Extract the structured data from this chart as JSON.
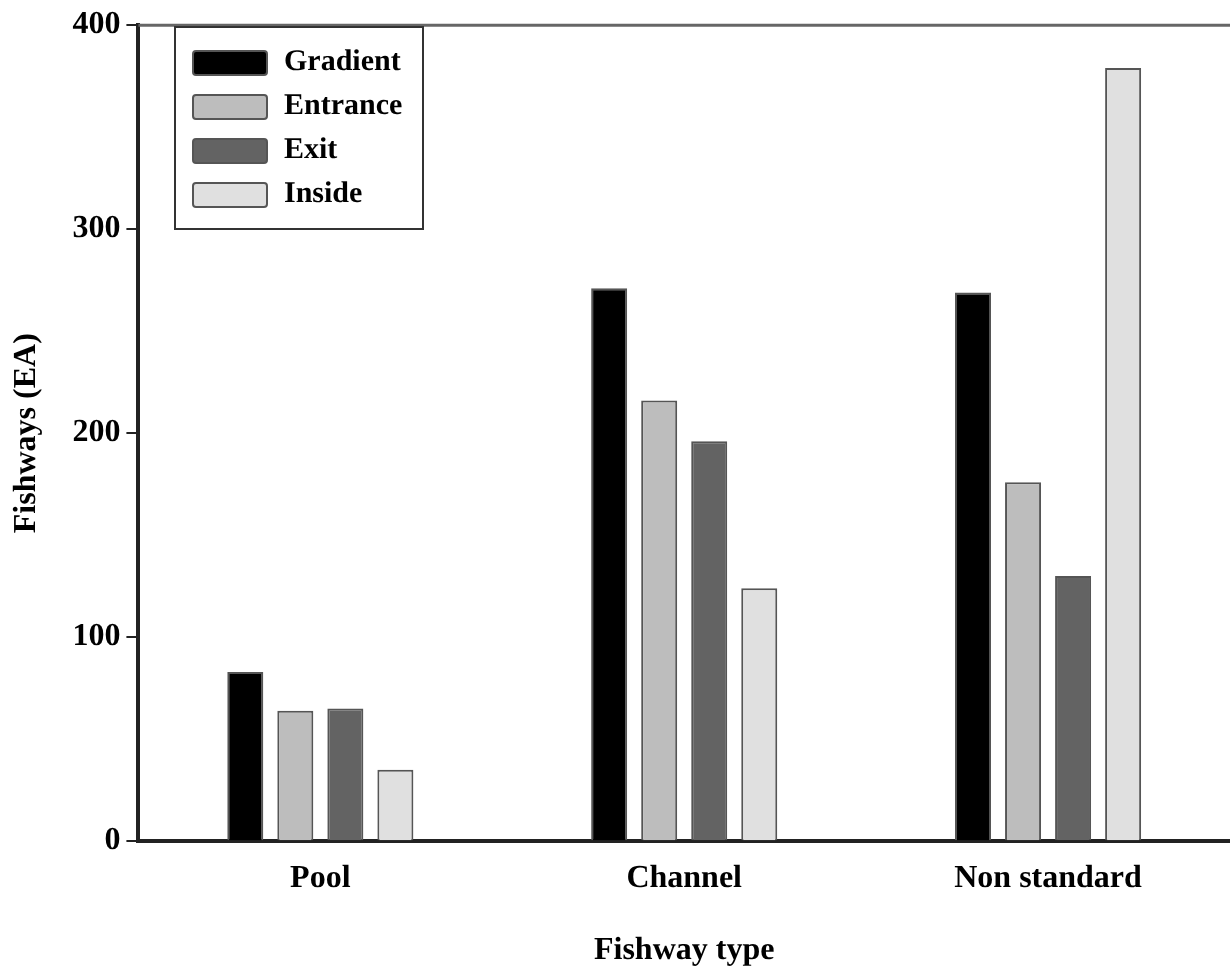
{
  "chart_data": {
    "type": "bar",
    "xlabel": "Fishway type",
    "ylabel": "Fishways (EA)",
    "categories": [
      "Pool",
      "Channel",
      "Non standard"
    ],
    "series": [
      {
        "name": "Gradient",
        "color": "#000000",
        "values": [
          83,
          271,
          269
        ]
      },
      {
        "name": "Entrance",
        "color": "#bdbdbd",
        "values": [
          64,
          216,
          176
        ]
      },
      {
        "name": "Exit",
        "color": "#636363",
        "values": [
          65,
          196,
          130
        ]
      },
      {
        "name": "Inside",
        "color": "#e0e0e0",
        "values": [
          35,
          124,
          379
        ]
      }
    ],
    "ylim": [
      0,
      400
    ],
    "yticks": [
      0,
      100,
      200,
      300,
      400
    ],
    "grid": false,
    "legend": "top left"
  }
}
